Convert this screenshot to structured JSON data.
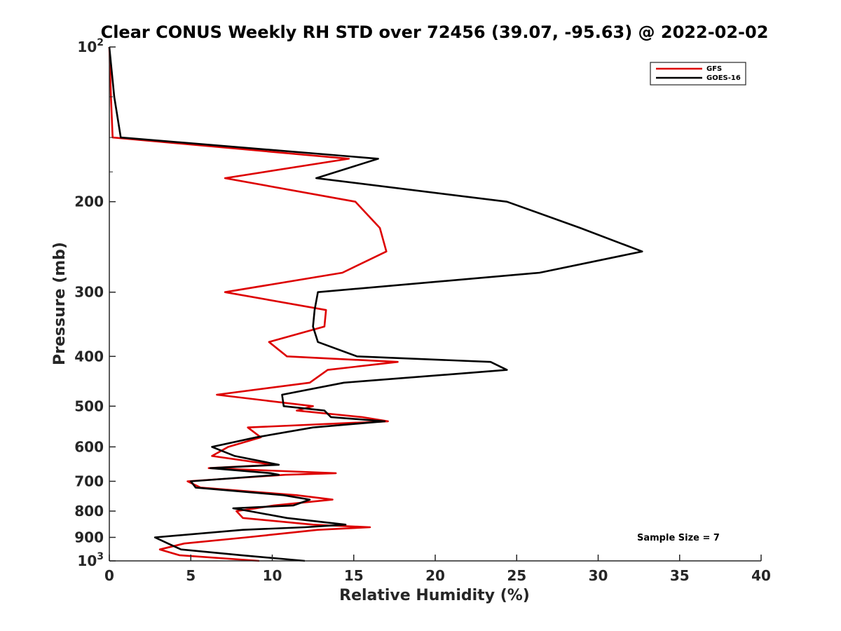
{
  "chart_data": {
    "type": "line",
    "title": "Clear CONUS Weekly RH STD over 72456 (39.07, -95.63) @ 2022-02-02",
    "xlabel": "Relative Humidity (%)",
    "ylabel": "Pressure (mb)",
    "xlim": [
      0,
      40
    ],
    "ylim": [
      100,
      1000
    ],
    "yscale": "log",
    "yreversed": true,
    "x_ticks": [
      0,
      5,
      10,
      15,
      20,
      25,
      30,
      35,
      40
    ],
    "y_ticks": [
      {
        "value": 100,
        "label": "10",
        "sup": "2"
      },
      {
        "value": 200,
        "label": "200"
      },
      {
        "value": 300,
        "label": "300"
      },
      {
        "value": 400,
        "label": "400"
      },
      {
        "value": 500,
        "label": "500"
      },
      {
        "value": 600,
        "label": "600"
      },
      {
        "value": 700,
        "label": "700"
      },
      {
        "value": 800,
        "label": "800"
      },
      {
        "value": 900,
        "label": "900"
      },
      {
        "value": 1000,
        "label": "10",
        "sup": "3"
      }
    ],
    "legend_position": "top-right",
    "annotation": "Sample Size = 7",
    "series": [
      {
        "name": "GFS",
        "color": "#dd0000",
        "points": [
          [
            0.0,
            100
          ],
          [
            0.1,
            125
          ],
          [
            0.2,
            150
          ],
          [
            14.7,
            165
          ],
          [
            7.1,
            180
          ],
          [
            15.1,
            200
          ],
          [
            16.6,
            225
          ],
          [
            17.0,
            250
          ],
          [
            14.3,
            275
          ],
          [
            7.1,
            300
          ],
          [
            13.3,
            325
          ],
          [
            13.2,
            350
          ],
          [
            9.8,
            375
          ],
          [
            10.9,
            400
          ],
          [
            17.7,
            410
          ],
          [
            13.4,
            425
          ],
          [
            12.3,
            450
          ],
          [
            6.6,
            475
          ],
          [
            12.5,
            500
          ],
          [
            11.5,
            510
          ],
          [
            15.5,
            525
          ],
          [
            17.1,
            535
          ],
          [
            8.5,
            550
          ],
          [
            9.3,
            575
          ],
          [
            7.3,
            600
          ],
          [
            6.3,
            625
          ],
          [
            10.1,
            650
          ],
          [
            6.1,
            660
          ],
          [
            13.9,
            675
          ],
          [
            10.8,
            680
          ],
          [
            4.8,
            700
          ],
          [
            5.6,
            720
          ],
          [
            11.5,
            745
          ],
          [
            13.7,
            760
          ],
          [
            10.1,
            780
          ],
          [
            9.0,
            790
          ],
          [
            7.8,
            800
          ],
          [
            8.2,
            825
          ],
          [
            12.5,
            850
          ],
          [
            16.0,
            860
          ],
          [
            12.8,
            870
          ],
          [
            8.4,
            900
          ],
          [
            4.6,
            925
          ],
          [
            3.1,
            950
          ],
          [
            4.3,
            975
          ],
          [
            9.2,
            1000
          ]
        ]
      },
      {
        "name": "GOES-16",
        "color": "#000000",
        "points": [
          [
            0.0,
            100
          ],
          [
            0.3,
            125
          ],
          [
            0.7,
            150
          ],
          [
            16.5,
            165
          ],
          [
            12.7,
            180
          ],
          [
            24.4,
            200
          ],
          [
            28.9,
            225
          ],
          [
            32.7,
            250
          ],
          [
            26.4,
            275
          ],
          [
            12.8,
            300
          ],
          [
            12.6,
            325
          ],
          [
            12.5,
            350
          ],
          [
            12.8,
            375
          ],
          [
            15.2,
            400
          ],
          [
            23.4,
            410
          ],
          [
            24.4,
            425
          ],
          [
            14.4,
            450
          ],
          [
            10.6,
            475
          ],
          [
            10.7,
            500
          ],
          [
            13.2,
            510
          ],
          [
            13.6,
            525
          ],
          [
            16.9,
            535
          ],
          [
            12.5,
            550
          ],
          [
            9.0,
            575
          ],
          [
            6.3,
            600
          ],
          [
            7.7,
            625
          ],
          [
            10.4,
            650
          ],
          [
            6.2,
            660
          ],
          [
            9.9,
            675
          ],
          [
            10.4,
            680
          ],
          [
            5.0,
            700
          ],
          [
            5.3,
            720
          ],
          [
            10.7,
            745
          ],
          [
            12.3,
            760
          ],
          [
            11.3,
            780
          ],
          [
            7.6,
            790
          ],
          [
            8.6,
            800
          ],
          [
            10.9,
            825
          ],
          [
            14.5,
            850
          ],
          [
            12.0,
            860
          ],
          [
            8.2,
            870
          ],
          [
            2.8,
            900
          ],
          [
            3.6,
            925
          ],
          [
            4.4,
            950
          ],
          [
            8.1,
            975
          ],
          [
            12.0,
            1000
          ]
        ]
      }
    ]
  }
}
